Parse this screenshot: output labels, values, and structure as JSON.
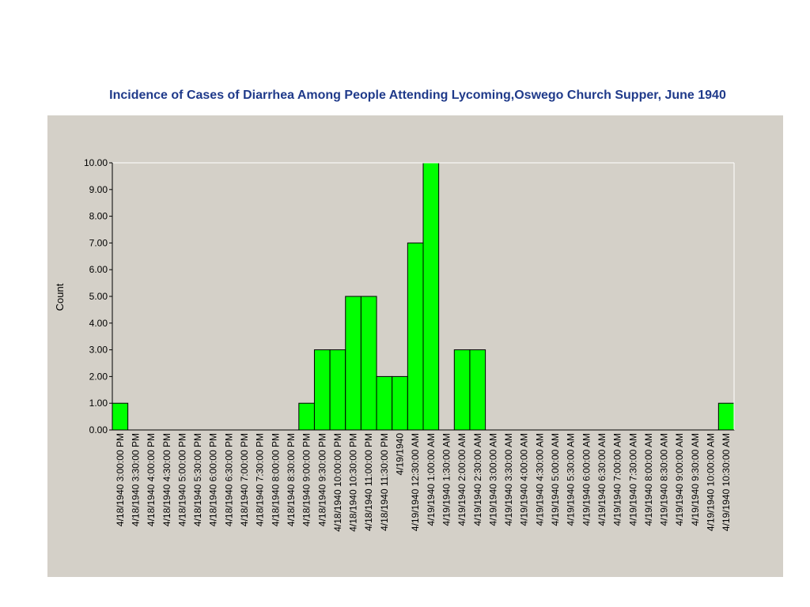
{
  "chart_data": {
    "type": "bar",
    "title": "Incidence of Cases of Diarrhea Among People Attending Lycoming,Oswego Church Supper, June 1940",
    "xlabel": "",
    "ylabel": "Count",
    "ylim": [
      0,
      10
    ],
    "yticks": [
      "0.00",
      "1.00",
      "2.00",
      "3.00",
      "4.00",
      "5.00",
      "6.00",
      "7.00",
      "8.00",
      "9.00",
      "10.00"
    ],
    "grid": false,
    "categories": [
      "4/18/1940 3:00:00 PM",
      "4/18/1940 3:30:00 PM",
      "4/18/1940 4:00:00 PM",
      "4/18/1940 4:30:00 PM",
      "4/18/1940 5:00:00 PM",
      "4/18/1940 5:30:00 PM",
      "4/18/1940 6:00:00 PM",
      "4/18/1940 6:30:00 PM",
      "4/18/1940 7:00:00 PM",
      "4/18/1940 7:30:00 PM",
      "4/18/1940 8:00:00 PM",
      "4/18/1940 8:30:00 PM",
      "4/18/1940 9:00:00 PM",
      "4/18/1940 9:30:00 PM",
      "4/18/1940 10:00:00 PM",
      "4/18/1940 10:30:00 PM",
      "4/18/1940 11:00:00 PM",
      "4/18/1940 11:30:00 PM",
      "4/19/1940",
      "4/19/1940 12:30:00 AM",
      "4/19/1940 1:00:00 AM",
      "4/19/1940 1:30:00 AM",
      "4/19/1940 2:00:00 AM",
      "4/19/1940 2:30:00 AM",
      "4/19/1940 3:00:00 AM",
      "4/19/1940 3:30:00 AM",
      "4/19/1940 4:00:00 AM",
      "4/19/1940 4:30:00 AM",
      "4/19/1940 5:00:00 AM",
      "4/19/1940 5:30:00 AM",
      "4/19/1940 6:00:00 AM",
      "4/19/1940 6:30:00 AM",
      "4/19/1940 7:00:00 AM",
      "4/19/1940 7:30:00 AM",
      "4/19/1940 8:00:00 AM",
      "4/19/1940 8:30:00 AM",
      "4/19/1940 9:00:00 AM",
      "4/19/1940 9:30:00 AM",
      "4/19/1940 10:00:00 AM",
      "4/19/1940 10:30:00 AM"
    ],
    "values": [
      1,
      0,
      0,
      0,
      0,
      0,
      0,
      0,
      0,
      0,
      0,
      0,
      1,
      3,
      3,
      5,
      5,
      2,
      2,
      7,
      10,
      0,
      3,
      3,
      0,
      0,
      0,
      0,
      0,
      0,
      0,
      0,
      0,
      0,
      0,
      0,
      0,
      0,
      0,
      1
    ],
    "colors": {
      "bar": "#00ff00",
      "outline": "#000000",
      "background": "#d4d0c8",
      "axis": "#000000"
    }
  }
}
